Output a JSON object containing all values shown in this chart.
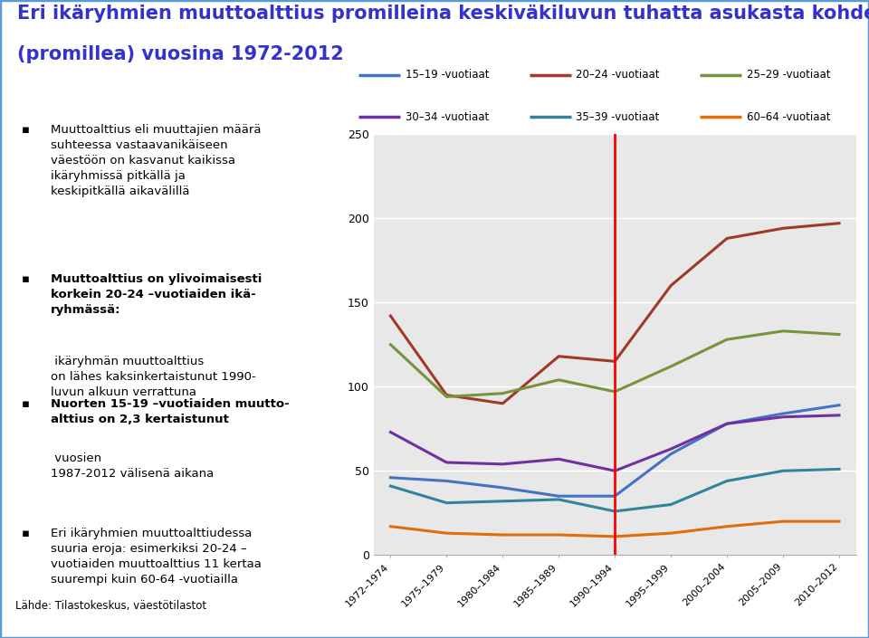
{
  "title_line1": "Eri ikäryhmien muuttoalttius promilleina keskiväkiluvun tuhatta asukasta kohden",
  "title_line2": "(promillea) vuosina 1972-2012",
  "title_color": "#3333cc",
  "title_fontsize": 15,
  "left_bullets": [
    {
      "text": "Muuttoalttius eli muuttajien määrä suhteessa vastaavanikäiseen väestöön on kasvanut kaikissa ikäryhmissä pitkällä ja keskipitkillä aikavälillä",
      "bold_prefix": ""
    },
    {
      "text": "ikäryhmän muuttoalttius on lähes kaksinkertaistunut 1990-luvun alkuun verrattuna",
      "bold_prefix": "Muuttoalttius on ylivoimaisesti korkein 20-24 –vuotiaiden ikäryhmssä:"
    },
    {
      "text": "vuosien 1987-2012 välisenä aikana",
      "bold_prefix": "Nuorten 15-19 –vuotiaiden muuttoalttius on 2,3 kertaistunut"
    },
    {
      "text": "suuria eroja: esimerkiksi 20-24 –vuotiaiden muuttoalttius 11 kertaa suurempi kuin 60-64 -vuotiailla",
      "bold_prefix": "Eri ikäryhmien muuttoalttiudessa"
    }
  ],
  "source_text": "Lähde: Tilastokeskus, väestötilastot",
  "x_labels": [
    "1972–1974",
    "1975–1979",
    "1980–1984",
    "1985–1989",
    "1990–1994",
    "1995–1999",
    "2000–2004",
    "2005–2009",
    "2010–2012"
  ],
  "ylim": [
    0,
    250
  ],
  "yticks": [
    0,
    50,
    100,
    150,
    200,
    250
  ],
  "series": [
    {
      "label": "15–19 -vuotiaat",
      "color": "#4472c4",
      "values": [
        46,
        44,
        40,
        35,
        35,
        60,
        78,
        84,
        89
      ]
    },
    {
      "label": "20–24 -vuotiaat",
      "color": "#9e3a26",
      "values": [
        142,
        95,
        90,
        118,
        115,
        160,
        188,
        194,
        197
      ]
    },
    {
      "label": "25–29 -vuotiaat",
      "color": "#77933c",
      "values": [
        125,
        94,
        96,
        104,
        97,
        112,
        128,
        133,
        131
      ]
    },
    {
      "label": "30–34 -vuotiaat",
      "color": "#7030a0",
      "values": [
        73,
        55,
        54,
        57,
        50,
        63,
        78,
        82,
        83
      ]
    },
    {
      "label": "35–39 -vuotiaat",
      "color": "#31849b",
      "values": [
        41,
        31,
        32,
        33,
        26,
        30,
        44,
        50,
        51
      ]
    },
    {
      "label": "60–64 -vuotiaat",
      "color": "#e36c09",
      "values": [
        17,
        13,
        12,
        12,
        11,
        13,
        17,
        20,
        20
      ]
    }
  ],
  "vline_x_index": 4,
  "vline_color": "#ff0000",
  "chart_bg": "#e8e8e8",
  "outer_bg": "#ffffff",
  "grid_color": "#ffffff",
  "border_color": "#5b9bd5",
  "border_lw": 2.5
}
